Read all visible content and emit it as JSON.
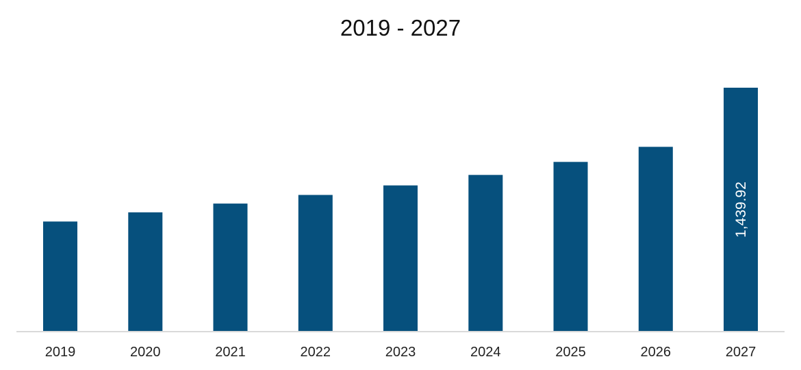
{
  "chart_data": {
    "type": "bar",
    "title": "2019 - 2027",
    "xlabel": "",
    "ylabel": "",
    "categories": [
      "2019",
      "2020",
      "2021",
      "2022",
      "2023",
      "2024",
      "2025",
      "2026",
      "2027"
    ],
    "values": [
      650,
      704,
      756,
      807,
      863,
      925,
      1002,
      1091,
      1439.92
    ],
    "data_labels": [
      "",
      "",
      "",
      "",
      "",
      "",
      "",
      "",
      "1,439.92"
    ],
    "ylim": [
      0,
      1600
    ],
    "grid": false,
    "legend": "none",
    "colors": {
      "bar": "#06507d",
      "axis": "#d9d9d9",
      "data_label": "#ffffff"
    }
  }
}
